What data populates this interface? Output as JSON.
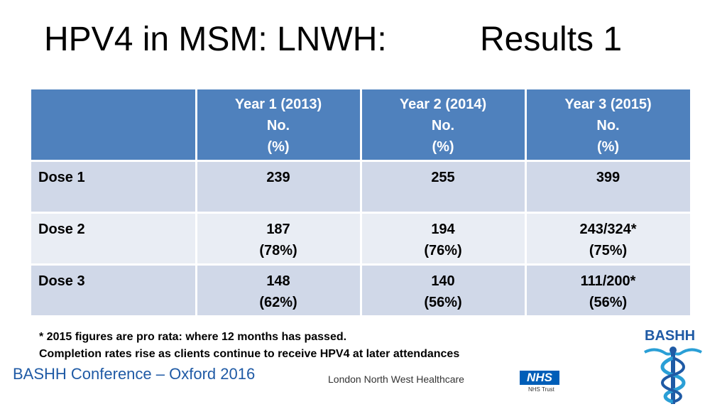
{
  "slide": {
    "title_part1": "HPV4 in MSM: LNWH:",
    "title_part2": "Results 1"
  },
  "table": {
    "columns": [
      {
        "line1": "",
        "line2": "",
        "line3": ""
      },
      {
        "line1": "Year 1 (2013)",
        "line2": "No.",
        "line3": "(%)"
      },
      {
        "line1": "Year 2 (2014)",
        "line2": "No.",
        "line3": "(%)"
      },
      {
        "line1": "Year 3 (2015)",
        "line2": "No.",
        "line3": "(%)"
      }
    ],
    "rows": [
      {
        "label": "Dose 1",
        "cells": [
          {
            "value": "239",
            "pct": ""
          },
          {
            "value": "255",
            "pct": ""
          },
          {
            "value": "399",
            "pct": ""
          }
        ]
      },
      {
        "label": "Dose 2",
        "cells": [
          {
            "value": "187",
            "pct": "(78%)"
          },
          {
            "value": "194",
            "pct": "(76%)"
          },
          {
            "value": "243/324*",
            "pct": "(75%)"
          }
        ]
      },
      {
        "label": "Dose 3",
        "cells": [
          {
            "value": "148",
            "pct": "(62%)"
          },
          {
            "value": "140",
            "pct": "(56%)"
          },
          {
            "value": "111/200*",
            "pct": "(56%)"
          }
        ]
      }
    ]
  },
  "footnotes": {
    "line1": "* 2015 figures are pro rata: where 12 months has passed.",
    "line2": "Completion rates rise as clients continue to receive HPV4 at later attendances"
  },
  "footer": {
    "conference": "BASHH Conference – Oxford 2016",
    "org_name": "London North West Healthcare",
    "nhs_logo": "NHS",
    "nhs_trust": "NHS Trust",
    "bashh_logo": "BASHH"
  },
  "colors": {
    "header_bg": "#4f81bd",
    "row_dark": "#d0d8e8",
    "row_light": "#e9edf4",
    "brand_blue": "#1f5aa5",
    "nhs_blue": "#005eb8"
  },
  "icons": {
    "bashh_emblem": "caduceus-icon"
  }
}
